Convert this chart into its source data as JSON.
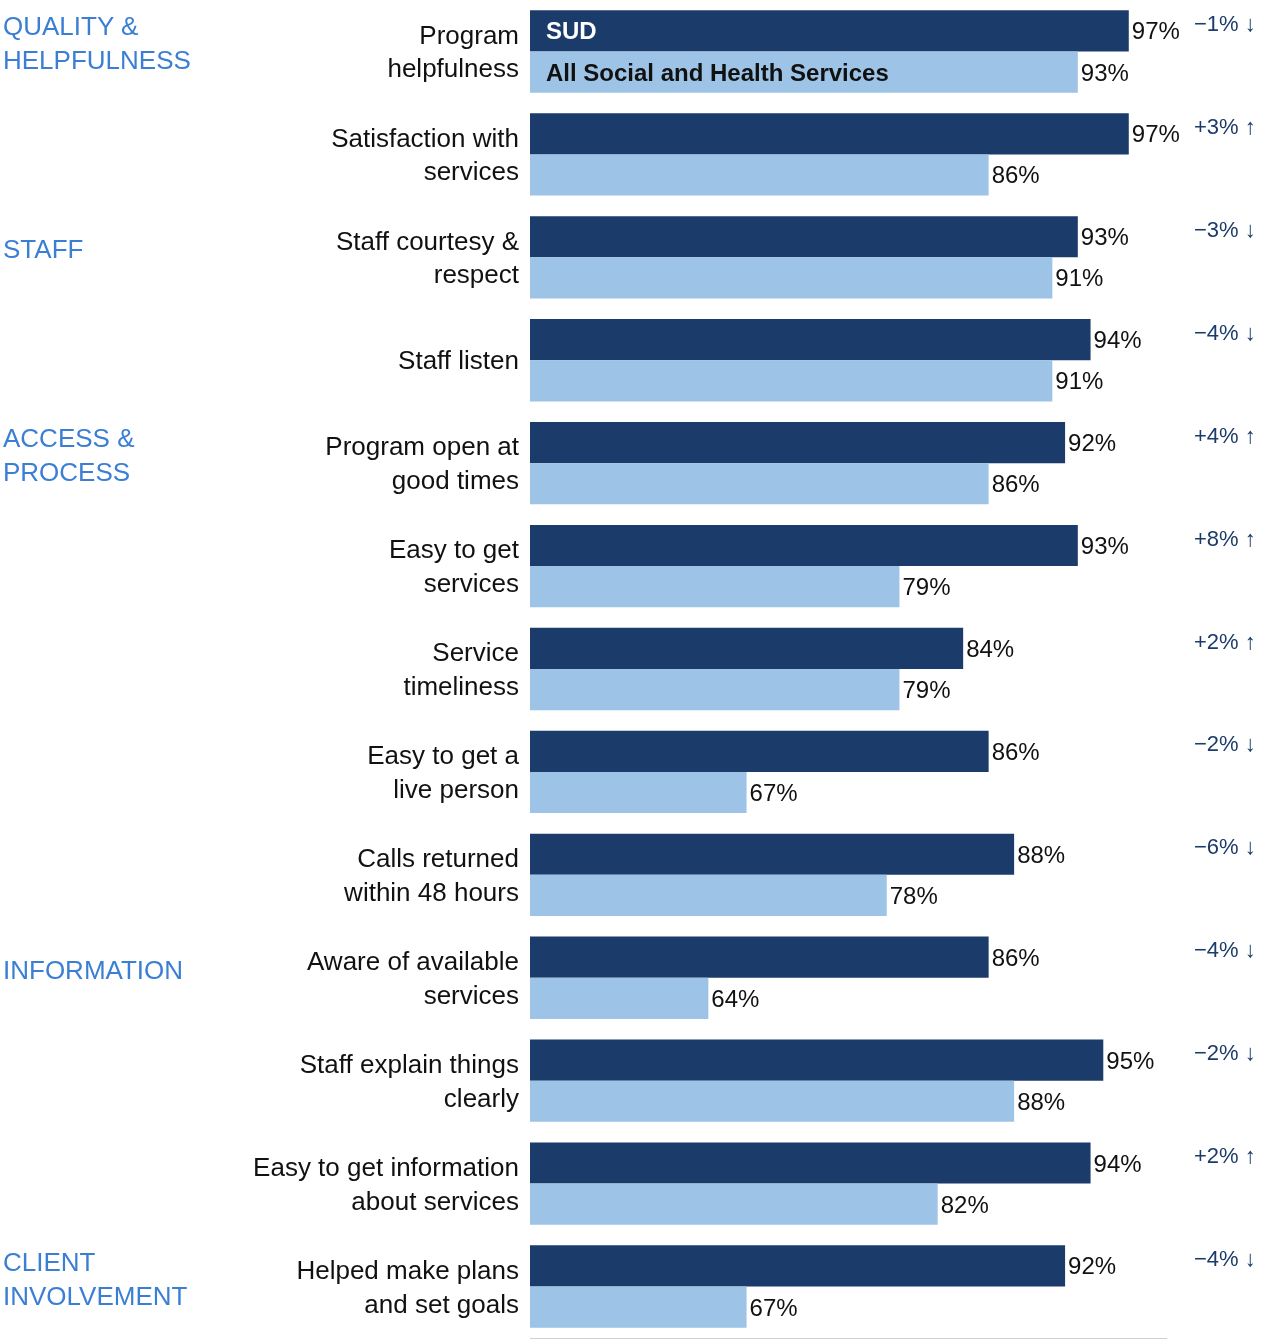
{
  "chart_data": {
    "type": "bar",
    "orientation": "horizontal",
    "legend": false,
    "tick_labels": "y",
    "xlim": [
      50,
      100
    ],
    "categories": [
      "Program\nhelpfulness",
      "Satisfaction with\nservices",
      "Staff courtesy &\nrespect",
      "Staff listen",
      "Program open at\ngood times",
      "Easy to get\nservices",
      "Service\ntimeliness",
      "Easy to get a\nlive person",
      "Calls returned\nwithin 48 hours",
      "Aware of available\nservices",
      "Staff explain things\nclearly",
      "Easy to get information\nabout services",
      "Helped make plans\nand set goals"
    ],
    "series": [
      {
        "name": "SUD",
        "color": "#1b3b6b",
        "values": [
          97,
          97,
          93,
          94,
          92,
          93,
          84,
          86,
          88,
          86,
          95,
          94,
          92
        ],
        "value_labels": [
          "97%",
          "97%",
          "93%",
          "94%",
          "92%",
          "93%",
          "84%",
          "86%",
          "88%",
          "86%",
          "95%",
          "94%",
          "92%"
        ]
      },
      {
        "name": "All Social and Health Services",
        "color": "#9dc3e6",
        "values": [
          93,
          86,
          91,
          91,
          86,
          79,
          79,
          67,
          78,
          64,
          88,
          82,
          67
        ],
        "value_labels": [
          "93%",
          "86%",
          "91%",
          "91%",
          "86%",
          "79%",
          "79%",
          "67%",
          "78%",
          "64%",
          "88%",
          "82%",
          "67%"
        ]
      }
    ],
    "annotations": [
      "QUALITY &\nHELPFULNESS",
      "STAFF",
      "ACCESS &\nPROCESS",
      "INFORMATION",
      "CLIENT\nINVOLVEMENT",
      "−1% ↓",
      "+3% ↑",
      "−3% ↓",
      "−4% ↓",
      "+4% ↑",
      "+8% ↑",
      "+2% ↑",
      "−2% ↓",
      "−6% ↓",
      "−4% ↓",
      "−2% ↓",
      "+2% ↑",
      "−4% ↓"
    ]
  }
}
